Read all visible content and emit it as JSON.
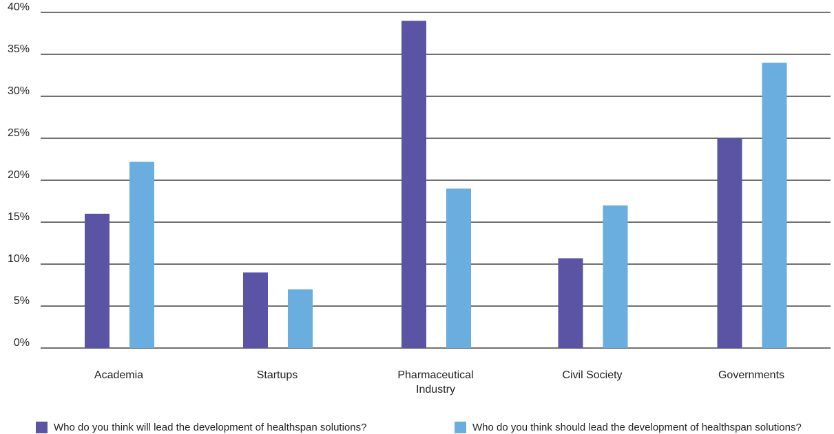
{
  "chart_data": {
    "type": "bar",
    "title": "",
    "xlabel": "",
    "ylabel": "",
    "categories": [
      "Academia",
      "Startups",
      "Pharmaceutical Industry",
      "Civil Society",
      "Governments"
    ],
    "category_label_lines": [
      [
        "Academia"
      ],
      [
        "Startups"
      ],
      [
        "Pharmaceutical",
        "Industry"
      ],
      [
        "Civil Society"
      ],
      [
        "Governments"
      ]
    ],
    "series": [
      {
        "name": "Who do you think will lead the development of healthspan solutions?",
        "color": "#5b54a4",
        "values": [
          16,
          9,
          39,
          10.7,
          25
        ]
      },
      {
        "name": "Who do you think should lead the development of healthspan solutions?",
        "color": "#6aaddf",
        "values": [
          22.2,
          7,
          19,
          17,
          34
        ]
      }
    ],
    "ylim": [
      0,
      40
    ],
    "yticks": [
      0,
      5,
      10,
      15,
      20,
      25,
      30,
      35,
      40
    ],
    "ytick_labels": [
      "0%",
      "5%",
      "10%",
      "15%",
      "20%",
      "25%",
      "30%",
      "35%",
      "40%"
    ],
    "grid": true,
    "legend_position": "bottom"
  }
}
